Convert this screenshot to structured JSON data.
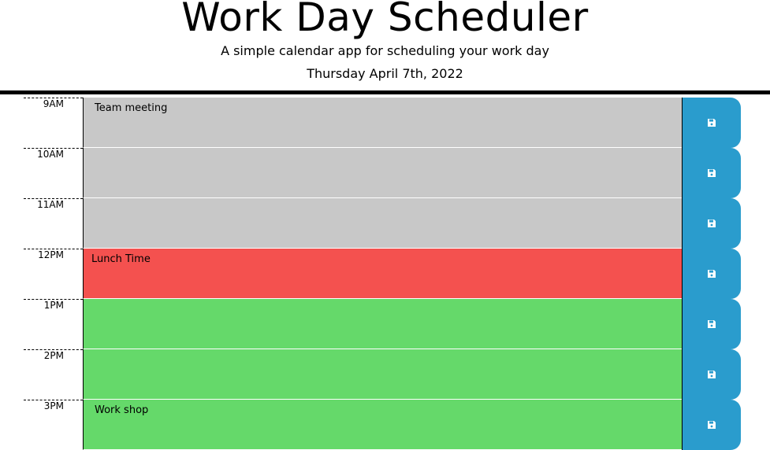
{
  "header": {
    "title": "Work Day Scheduler",
    "subtitle": "A simple calendar app for scheduling your work day",
    "current_day": "Thursday April 7th, 2022"
  },
  "time_blocks": [
    {
      "hour": "9AM",
      "text": "Team meeting",
      "status": "past",
      "save_icon": "floppy-disk-icon"
    },
    {
      "hour": "10AM",
      "text": "",
      "status": "past",
      "save_icon": "floppy-disk-icon"
    },
    {
      "hour": "11AM",
      "text": "",
      "status": "past",
      "save_icon": "floppy-disk-icon"
    },
    {
      "hour": "12PM",
      "text": "Lunch Time",
      "status": "present",
      "save_icon": "floppy-disk-icon"
    },
    {
      "hour": "1PM",
      "text": "",
      "status": "future",
      "save_icon": "floppy-disk-icon"
    },
    {
      "hour": "2PM",
      "text": "",
      "status": "future",
      "save_icon": "floppy-disk-icon"
    },
    {
      "hour": "3PM",
      "text": "Work shop",
      "status": "future",
      "save_icon": "floppy-disk-icon"
    }
  ],
  "colors": {
    "past": "#c8c8c8",
    "present": "#f4514f",
    "future": "#65d96a",
    "save_button": "#2a9ccd",
    "save_icon": "#ffffff"
  }
}
